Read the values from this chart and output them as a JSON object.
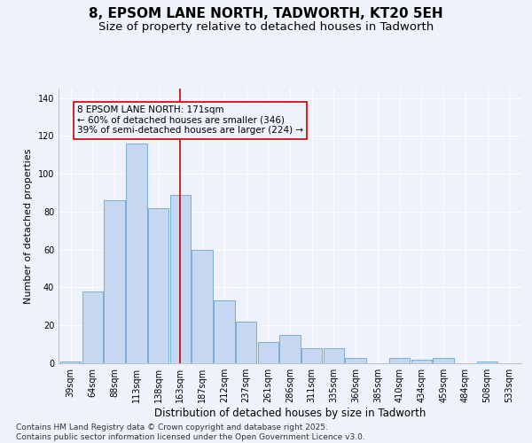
{
  "title": "8, EPSOM LANE NORTH, TADWORTH, KT20 5EH",
  "subtitle": "Size of property relative to detached houses in Tadworth",
  "xlabel": "Distribution of detached houses by size in Tadworth",
  "ylabel": "Number of detached properties",
  "categories": [
    "39sqm",
    "64sqm",
    "88sqm",
    "113sqm",
    "138sqm",
    "163sqm",
    "187sqm",
    "212sqm",
    "237sqm",
    "261sqm",
    "286sqm",
    "311sqm",
    "335sqm",
    "360sqm",
    "385sqm",
    "410sqm",
    "434sqm",
    "459sqm",
    "484sqm",
    "508sqm",
    "533sqm"
  ],
  "values": [
    1,
    38,
    86,
    116,
    82,
    89,
    60,
    33,
    22,
    11,
    15,
    8,
    8,
    3,
    0,
    3,
    2,
    3,
    0,
    1,
    0
  ],
  "bar_color": "#c5d8f0",
  "bar_edge_color": "#7aadd4",
  "background_color": "#eef2fa",
  "grid_color": "#ffffff",
  "annotation_text": "8 EPSOM LANE NORTH: 171sqm\n← 60% of detached houses are smaller (346)\n39% of semi-detached houses are larger (224) →",
  "vline_x_index": 5,
  "vline_color": "#cc0000",
  "annotation_box_color": "#cc0000",
  "ylim": [
    0,
    145
  ],
  "yticks": [
    0,
    20,
    40,
    60,
    80,
    100,
    120,
    140
  ],
  "footer_text": "Contains HM Land Registry data © Crown copyright and database right 2025.\nContains public sector information licensed under the Open Government Licence v3.0.",
  "title_fontsize": 11,
  "subtitle_fontsize": 9.5,
  "xlabel_fontsize": 8.5,
  "ylabel_fontsize": 8,
  "tick_fontsize": 7,
  "annotation_fontsize": 7.5,
  "footer_fontsize": 6.5
}
